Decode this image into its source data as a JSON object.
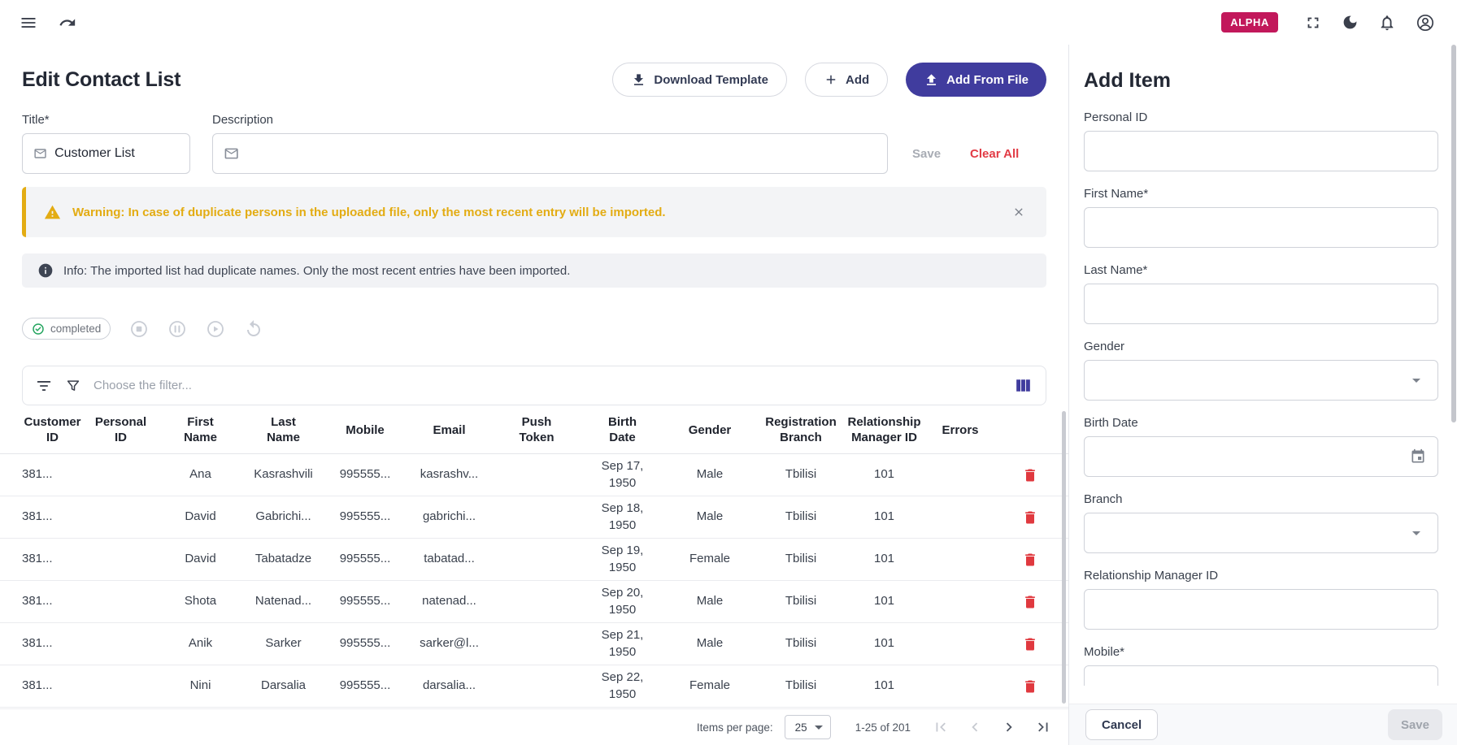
{
  "colors": {
    "primary": "#403c9e",
    "alpha": "#c2185b",
    "warning": "#e3ac13",
    "danger": "#e23b45",
    "success": "#23a45e"
  },
  "topbar": {
    "alpha_badge": "ALPHA"
  },
  "header": {
    "title": "Edit Contact List",
    "download_template_label": "Download Template",
    "add_label": "Add",
    "add_from_file_label": "Add From File"
  },
  "form": {
    "title_label": "Title*",
    "title_value": "Customer List",
    "description_label": "Description",
    "description_value": "",
    "save_label": "Save",
    "clear_all_label": "Clear All"
  },
  "banners": {
    "warning_text": "Warning: In case of duplicate persons in the uploaded file, only the most recent entry will be imported.",
    "info_text": "Info: The imported list had duplicate names. Only the most recent entries have been imported."
  },
  "status": {
    "label": "completed"
  },
  "filter": {
    "placeholder": "Choose the filter..."
  },
  "table": {
    "columns": [
      "Customer\nID",
      "Personal\nID",
      "First\nName",
      "Last\nName",
      "Mobile",
      "Email",
      "Push\nToken",
      "Birth\nDate",
      "Gender",
      "Registration\nBranch",
      "Relationship\nManager ID",
      "Errors"
    ],
    "rows": [
      [
        "381...",
        "",
        "Ana",
        "Kasrashvili",
        "995555...",
        "kasrashv...",
        "",
        "Sep 17, 1950",
        "Male",
        "Tbilisi",
        "101",
        ""
      ],
      [
        "381...",
        "",
        "David",
        "Gabrichi...",
        "995555...",
        "gabrichi...",
        "",
        "Sep 18, 1950",
        "Male",
        "Tbilisi",
        "101",
        ""
      ],
      [
        "381...",
        "",
        "David",
        "Tabatadze",
        "995555...",
        "tabatad...",
        "",
        "Sep 19, 1950",
        "Female",
        "Tbilisi",
        "101",
        ""
      ],
      [
        "381...",
        "",
        "Shota",
        "Natenad...",
        "995555...",
        "natenad...",
        "",
        "Sep 20, 1950",
        "Male",
        "Tbilisi",
        "101",
        ""
      ],
      [
        "381...",
        "",
        "Anik",
        "Sarker",
        "995555...",
        "sarker@l...",
        "",
        "Sep 21, 1950",
        "Male",
        "Tbilisi",
        "101",
        ""
      ],
      [
        "381...",
        "",
        "Nini",
        "Darsalia",
        "995555...",
        "darsalia...",
        "",
        "Sep 22, 1950",
        "Female",
        "Tbilisi",
        "101",
        ""
      ]
    ]
  },
  "pagination": {
    "items_per_page_label": "Items per page:",
    "items_per_page_value": "25",
    "range_label": "1-25 of 201"
  },
  "panel": {
    "title": "Add Item",
    "fields": [
      {
        "label": "Personal ID",
        "type": "text"
      },
      {
        "label": "First Name*",
        "type": "text"
      },
      {
        "label": "Last Name*",
        "type": "text"
      },
      {
        "label": "Gender",
        "type": "select"
      },
      {
        "label": "Birth Date",
        "type": "date"
      },
      {
        "label": "Branch",
        "type": "select"
      },
      {
        "label": "Relationship Manager ID",
        "type": "text"
      },
      {
        "label": "Mobile*",
        "type": "text"
      }
    ],
    "cancel_label": "Cancel",
    "save_label": "Save"
  }
}
